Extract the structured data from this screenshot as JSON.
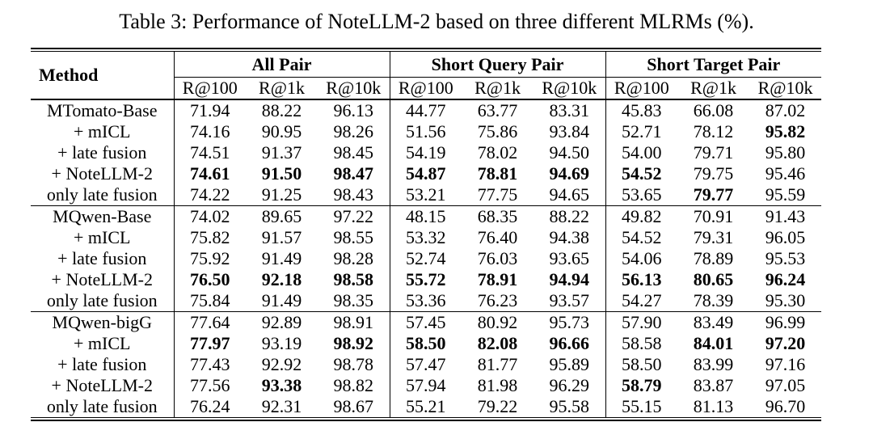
{
  "title": "Table 3: Performance of NoteLLM-2 based on three different MLRMs (%).",
  "table": {
    "method_header": "Method",
    "groups": [
      {
        "label": "All Pair",
        "subcols": [
          "R@100",
          "R@1k",
          "R@10k"
        ]
      },
      {
        "label": "Short Query Pair",
        "subcols": [
          "R@100",
          "R@1k",
          "R@10k"
        ]
      },
      {
        "label": "Short Target Pair",
        "subcols": [
          "R@100",
          "R@1k",
          "R@10k"
        ]
      }
    ],
    "blocks": [
      {
        "rows": [
          {
            "method": "MTomato-Base",
            "values": [
              "71.94",
              "88.22",
              "96.13",
              "44.77",
              "63.77",
              "83.31",
              "45.83",
              "66.08",
              "87.02"
            ],
            "bold": [
              0,
              0,
              0,
              0,
              0,
              0,
              0,
              0,
              0
            ]
          },
          {
            "method": "+ mICL",
            "values": [
              "74.16",
              "90.95",
              "98.26",
              "51.56",
              "75.86",
              "93.84",
              "52.71",
              "78.12",
              "95.82"
            ],
            "bold": [
              0,
              0,
              0,
              0,
              0,
              0,
              0,
              0,
              1
            ]
          },
          {
            "method": "+ late fusion",
            "values": [
              "74.51",
              "91.37",
              "98.45",
              "54.19",
              "78.02",
              "94.50",
              "54.00",
              "79.71",
              "95.80"
            ],
            "bold": [
              0,
              0,
              0,
              0,
              0,
              0,
              0,
              0,
              0
            ]
          },
          {
            "method": "+ NoteLLM-2",
            "values": [
              "74.61",
              "91.50",
              "98.47",
              "54.87",
              "78.81",
              "94.69",
              "54.52",
              "79.75",
              "95.46"
            ],
            "bold": [
              1,
              1,
              1,
              1,
              1,
              1,
              1,
              0,
              0
            ]
          },
          {
            "method": "only late fusion",
            "values": [
              "74.22",
              "91.25",
              "98.43",
              "53.21",
              "77.75",
              "94.65",
              "53.65",
              "79.77",
              "95.59"
            ],
            "bold": [
              0,
              0,
              0,
              0,
              0,
              0,
              0,
              1,
              0
            ]
          }
        ]
      },
      {
        "rows": [
          {
            "method": "MQwen-Base",
            "values": [
              "74.02",
              "89.65",
              "97.22",
              "48.15",
              "68.35",
              "88.22",
              "49.82",
              "70.91",
              "91.43"
            ],
            "bold": [
              0,
              0,
              0,
              0,
              0,
              0,
              0,
              0,
              0
            ]
          },
          {
            "method": "+ mICL",
            "values": [
              "75.82",
              "91.57",
              "98.55",
              "53.32",
              "76.40",
              "94.38",
              "54.52",
              "79.31",
              "96.05"
            ],
            "bold": [
              0,
              0,
              0,
              0,
              0,
              0,
              0,
              0,
              0
            ]
          },
          {
            "method": "+ late fusion",
            "values": [
              "75.92",
              "91.49",
              "98.28",
              "52.74",
              "76.03",
              "93.65",
              "54.06",
              "78.89",
              "95.53"
            ],
            "bold": [
              0,
              0,
              0,
              0,
              0,
              0,
              0,
              0,
              0
            ]
          },
          {
            "method": "+ NoteLLM-2",
            "values": [
              "76.50",
              "92.18",
              "98.58",
              "55.72",
              "78.91",
              "94.94",
              "56.13",
              "80.65",
              "96.24"
            ],
            "bold": [
              1,
              1,
              1,
              1,
              1,
              1,
              1,
              1,
              1
            ]
          },
          {
            "method": "only late fusion",
            "values": [
              "75.84",
              "91.49",
              "98.35",
              "53.36",
              "76.23",
              "93.57",
              "54.27",
              "78.39",
              "95.30"
            ],
            "bold": [
              0,
              0,
              0,
              0,
              0,
              0,
              0,
              0,
              0
            ]
          }
        ]
      },
      {
        "rows": [
          {
            "method": "MQwen-bigG",
            "values": [
              "77.64",
              "92.89",
              "98.91",
              "57.45",
              "80.92",
              "95.73",
              "57.90",
              "83.49",
              "96.99"
            ],
            "bold": [
              0,
              0,
              0,
              0,
              0,
              0,
              0,
              0,
              0
            ]
          },
          {
            "method": "+ mICL",
            "values": [
              "77.97",
              "93.19",
              "98.92",
              "58.50",
              "82.08",
              "96.66",
              "58.58",
              "84.01",
              "97.20"
            ],
            "bold": [
              1,
              0,
              1,
              1,
              1,
              1,
              0,
              1,
              1
            ]
          },
          {
            "method": "+ late fusion",
            "values": [
              "77.43",
              "92.92",
              "98.78",
              "57.47",
              "81.77",
              "95.89",
              "58.50",
              "83.99",
              "97.16"
            ],
            "bold": [
              0,
              0,
              0,
              0,
              0,
              0,
              0,
              0,
              0
            ]
          },
          {
            "method": "+ NoteLLM-2",
            "values": [
              "77.56",
              "93.38",
              "98.82",
              "57.94",
              "81.98",
              "96.29",
              "58.79",
              "83.87",
              "97.05"
            ],
            "bold": [
              0,
              1,
              0,
              0,
              0,
              0,
              1,
              0,
              0
            ]
          },
          {
            "method": "only late fusion",
            "values": [
              "76.24",
              "92.31",
              "98.67",
              "55.21",
              "79.22",
              "95.58",
              "55.15",
              "81.13",
              "96.70"
            ],
            "bold": [
              0,
              0,
              0,
              0,
              0,
              0,
              0,
              0,
              0
            ]
          }
        ]
      }
    ]
  }
}
